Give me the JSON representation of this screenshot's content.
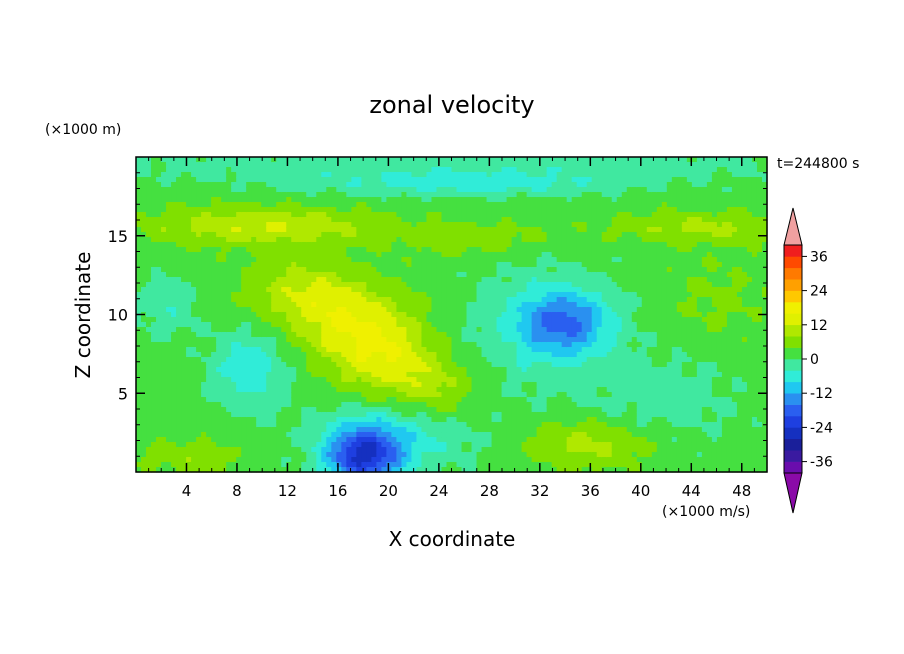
{
  "chart_data": {
    "type": "heatmap",
    "title": "zonal velocity",
    "xlabel": "X coordinate",
    "ylabel": "Z coordinate",
    "x_unit": "(×1000 m/s)",
    "y_unit": "(×1000 m)",
    "time_label": "t=244800 s",
    "xlim": [
      0,
      50
    ],
    "ylim": [
      0,
      20
    ],
    "x_ticks": [
      4,
      8,
      12,
      16,
      20,
      24,
      28,
      32,
      36,
      40,
      44,
      48
    ],
    "y_ticks": [
      5,
      10,
      15
    ],
    "colorbar": {
      "levels": [
        -40,
        -36,
        -32,
        -28,
        -24,
        -20,
        -16,
        -12,
        -8,
        -4,
        0,
        4,
        8,
        12,
        16,
        20,
        24,
        28,
        32,
        36,
        40
      ],
      "colors": [
        "#6a0dad",
        "#3a1aa0",
        "#1a1f9a",
        "#1530c0",
        "#1e3fe0",
        "#2a5ff0",
        "#2a90f0",
        "#20c8f0",
        "#30ecd8",
        "#40e8a0",
        "#45e040",
        "#80e000",
        "#b0e800",
        "#e0f000",
        "#f0f000",
        "#ffc800",
        "#ffa000",
        "#ff7a00",
        "#ff4a00",
        "#f01e1e"
      ],
      "under_color": "#8a0aa8",
      "over_color": "#f0a0a0",
      "tick_labels": [
        "36",
        "24",
        "12",
        "0",
        "-12",
        "-24",
        "-36"
      ],
      "tick_values": [
        36,
        24,
        12,
        0,
        -12,
        -24,
        -36
      ]
    },
    "fields": [
      {
        "x": 25,
        "z": 19.5,
        "value": -4,
        "sx": 40,
        "sz": 1.2
      },
      {
        "x": 26,
        "z": 18.3,
        "value": -7,
        "sx": 12,
        "sz": 0.8
      },
      {
        "x": 10,
        "z": 15.6,
        "value": 10,
        "sx": 9,
        "sz": 1.2
      },
      {
        "x": 45,
        "z": 15.5,
        "value": 7,
        "sx": 7,
        "sz": 1.0
      },
      {
        "x": 27,
        "z": 14.8,
        "value": 5,
        "sx": 6,
        "sz": 1.0
      },
      {
        "x": 17,
        "z": 9.5,
        "value": 12,
        "sx": 4.5,
        "sz": 2.5
      },
      {
        "x": 20,
        "z": 7,
        "value": 11,
        "sx": 4,
        "sz": 2.5
      },
      {
        "x": 24,
        "z": 5,
        "value": 7,
        "sx": 3.5,
        "sz": 2
      },
      {
        "x": 13,
        "z": 11.5,
        "value": 8,
        "sx": 4,
        "sz": 2
      },
      {
        "x": 9,
        "z": 6.5,
        "value": -9,
        "sx": 3,
        "sz": 2.5
      },
      {
        "x": 2.5,
        "z": 10.5,
        "value": -5,
        "sx": 2.5,
        "sz": 2
      },
      {
        "x": 34,
        "z": 9.5,
        "value": -15,
        "sx": 3.5,
        "sz": 2
      },
      {
        "x": 32,
        "z": 9,
        "value": -6,
        "sx": 6,
        "sz": 4
      },
      {
        "x": 18,
        "z": 1,
        "value": -24,
        "sx": 3,
        "sz": 1.8
      },
      {
        "x": 21,
        "z": 2.5,
        "value": -8,
        "sx": 6,
        "sz": 2.5
      },
      {
        "x": 36,
        "z": 1.8,
        "value": 8,
        "sx": 5,
        "sz": 1.5
      },
      {
        "x": 42,
        "z": 4.5,
        "value": -4,
        "sx": 6,
        "sz": 3
      },
      {
        "x": 46,
        "z": 11,
        "value": 3,
        "sx": 4,
        "sz": 2.5
      },
      {
        "x": 4,
        "z": 1,
        "value": 5,
        "sx": 4,
        "sz": 1
      }
    ]
  }
}
